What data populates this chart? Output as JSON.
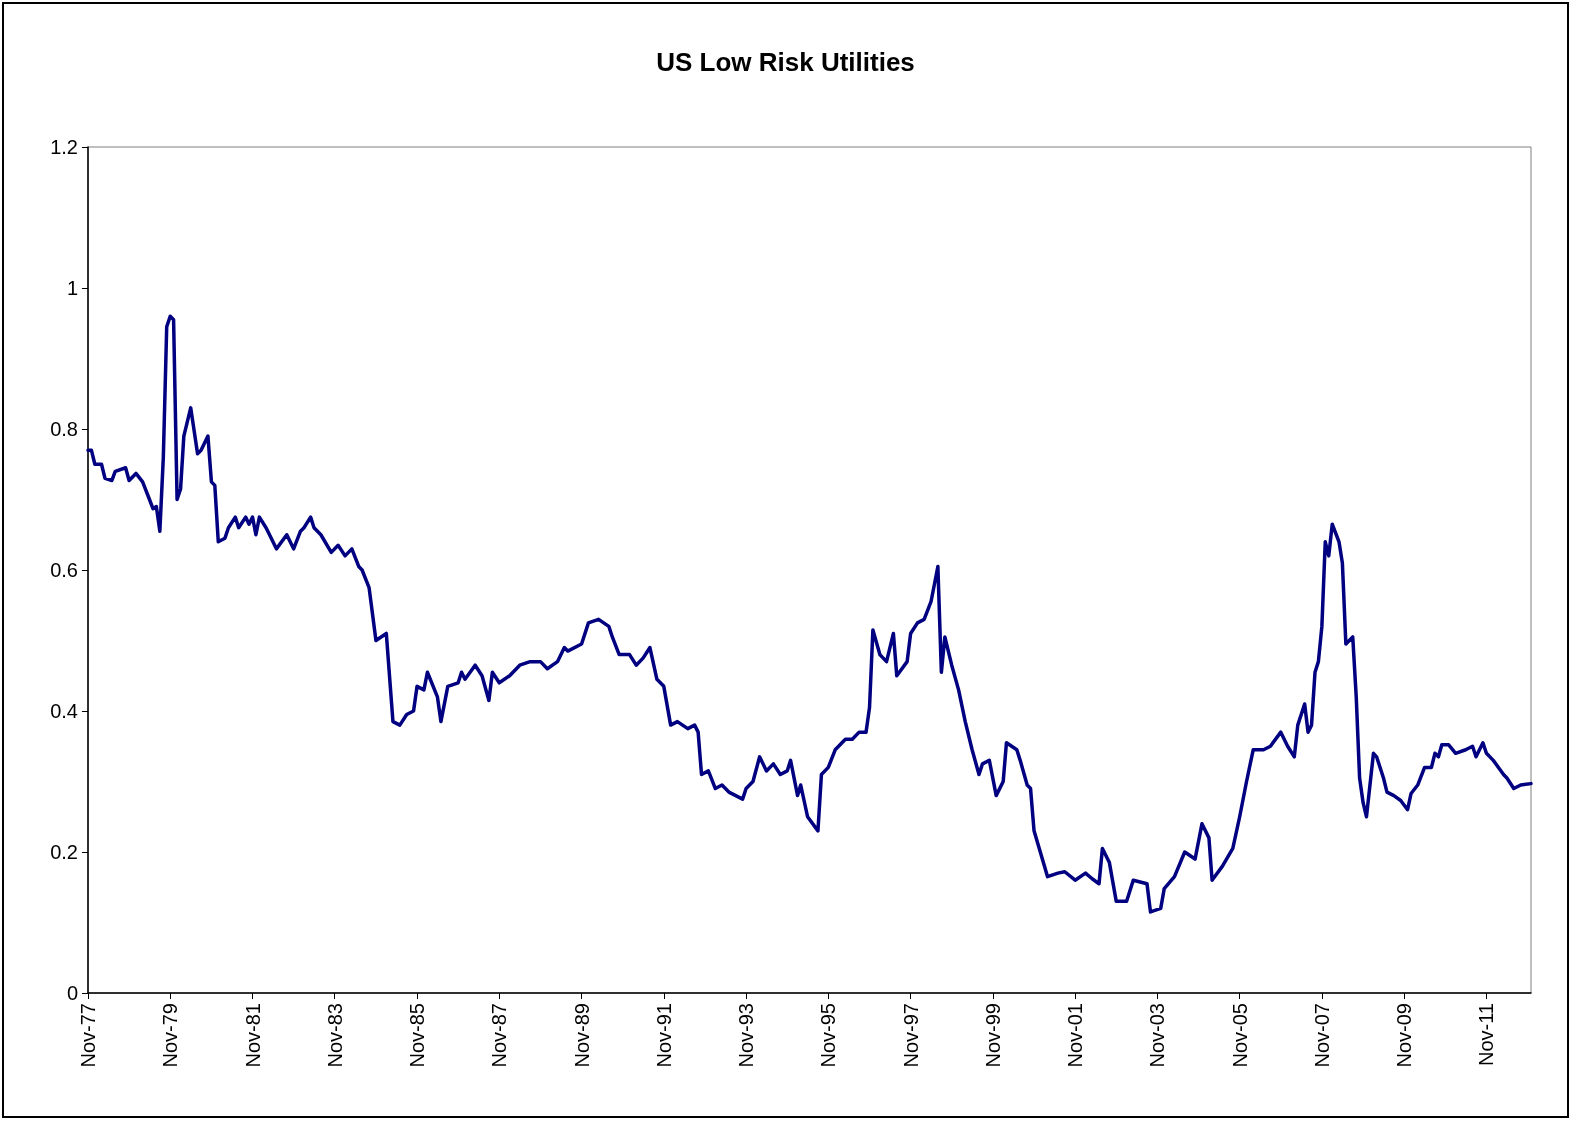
{
  "chart_data": {
    "type": "line",
    "title": "US Low Risk Utilities",
    "x": [
      "1977-11",
      "1977-12",
      "1978-01",
      "1978-03",
      "1978-04",
      "1978-06",
      "1978-07",
      "1978-10",
      "1978-11",
      "1979-01",
      "1979-03",
      "1979-05",
      "1979-06",
      "1979-07",
      "1979-08",
      "1979-09",
      "1979-10",
      "1979-11",
      "1979-12",
      "1980-01",
      "1980-02",
      "1980-03",
      "1980-05",
      "1980-07",
      "1980-08",
      "1980-10",
      "1980-11",
      "1980-12",
      "1981-01",
      "1981-03",
      "1981-04",
      "1981-06",
      "1981-07",
      "1981-09",
      "1981-10",
      "1981-11",
      "1981-12",
      "1982-01",
      "1982-03",
      "1982-04",
      "1982-06",
      "1982-09",
      "1982-11",
      "1983-01",
      "1983-02",
      "1983-04",
      "1983-05",
      "1983-07",
      "1983-10",
      "1983-12",
      "1984-02",
      "1984-04",
      "1984-06",
      "1984-07",
      "1984-09",
      "1984-11",
      "1985-02",
      "1985-04",
      "1985-06",
      "1985-08",
      "1985-10",
      "1985-11",
      "1986-01",
      "1986-02",
      "1986-05",
      "1986-06",
      "1986-08",
      "1986-11",
      "1986-12",
      "1987-01",
      "1987-04",
      "1987-06",
      "1987-08",
      "1987-09",
      "1987-11",
      "1988-02",
      "1988-05",
      "1988-08",
      "1988-11",
      "1989-01",
      "1989-04",
      "1989-06",
      "1989-07",
      "1989-11",
      "1990-01",
      "1990-04",
      "1990-07",
      "1990-08",
      "1990-10",
      "1991-01",
      "1991-03",
      "1991-05",
      "1991-07",
      "1991-09",
      "1991-11",
      "1992-01",
      "1992-03",
      "1992-06",
      "1992-08",
      "1992-09",
      "1992-10",
      "1992-12",
      "1993-02",
      "1993-04",
      "1993-06",
      "1993-10",
      "1993-11",
      "1994-01",
      "1994-03",
      "1994-05",
      "1994-07",
      "1994-09",
      "1994-11",
      "1994-12",
      "1995-02",
      "1995-03",
      "1995-05",
      "1995-08",
      "1995-09",
      "1995-11",
      "1996-01",
      "1996-04",
      "1996-06",
      "1996-08",
      "1996-10",
      "1996-11",
      "1996-12",
      "1997-02",
      "1997-04",
      "1997-06",
      "1997-07",
      "1997-10",
      "1997-11",
      "1998-01",
      "1998-03",
      "1998-05",
      "1998-07",
      "1998-08",
      "1998-09",
      "1998-11",
      "1999-01",
      "1999-03",
      "1999-05",
      "1999-07",
      "1999-08",
      "1999-10",
      "1999-12",
      "2000-02",
      "2000-03",
      "2000-06",
      "2000-07",
      "2000-09",
      "2000-10",
      "2000-11",
      "2001-03",
      "2001-06",
      "2001-08",
      "2001-11",
      "2002-02",
      "2002-04",
      "2002-06",
      "2002-07",
      "2002-09",
      "2002-11",
      "2003-02",
      "2003-04",
      "2003-08",
      "2003-09",
      "2003-12",
      "2004-01",
      "2004-04",
      "2004-07",
      "2004-10",
      "2004-12",
      "2005-02",
      "2005-03",
      "2005-06",
      "2005-09",
      "2005-11",
      "2006-01",
      "2006-03",
      "2006-06",
      "2006-08",
      "2006-11",
      "2007-01",
      "2007-03",
      "2007-04",
      "2007-06",
      "2007-07",
      "2007-08",
      "2007-09",
      "2007-10",
      "2007-11",
      "2007-12",
      "2008-01",
      "2008-02",
      "2008-04",
      "2008-05",
      "2008-06",
      "2008-08",
      "2008-09",
      "2008-10",
      "2008-11",
      "2008-12",
      "2009-02",
      "2009-03",
      "2009-05",
      "2009-06",
      "2009-08",
      "2009-10",
      "2009-12",
      "2010-01",
      "2010-03",
      "2010-05",
      "2010-07",
      "2010-08",
      "2010-09",
      "2010-10",
      "2010-12",
      "2011-02",
      "2011-05",
      "2011-07",
      "2011-08",
      "2011-10",
      "2011-11",
      "2012-01",
      "2012-04",
      "2012-05",
      "2012-07",
      "2012-09",
      "2012-12"
    ],
    "series": [
      {
        "color": "#000080",
        "values": [
          0.77,
          0.77,
          0.75,
          0.75,
          0.73,
          0.727,
          0.74,
          0.745,
          0.727,
          0.737,
          0.725,
          0.7,
          0.687,
          0.69,
          0.655,
          0.76,
          0.945,
          0.96,
          0.955,
          0.7,
          0.715,
          0.79,
          0.83,
          0.765,
          0.77,
          0.79,
          0.725,
          0.72,
          0.64,
          0.645,
          0.66,
          0.675,
          0.66,
          0.675,
          0.665,
          0.675,
          0.65,
          0.675,
          0.66,
          0.65,
          0.63,
          0.65,
          0.63,
          0.655,
          0.66,
          0.675,
          0.66,
          0.65,
          0.625,
          0.635,
          0.62,
          0.63,
          0.605,
          0.6,
          0.575,
          0.5,
          0.51,
          0.385,
          0.38,
          0.395,
          0.4,
          0.435,
          0.43,
          0.455,
          0.42,
          0.385,
          0.435,
          0.44,
          0.455,
          0.445,
          0.465,
          0.45,
          0.415,
          0.455,
          0.44,
          0.45,
          0.465,
          0.47,
          0.47,
          0.46,
          0.47,
          0.49,
          0.485,
          0.495,
          0.525,
          0.53,
          0.52,
          0.505,
          0.48,
          0.48,
          0.465,
          0.475,
          0.49,
          0.445,
          0.435,
          0.38,
          0.385,
          0.375,
          0.38,
          0.37,
          0.31,
          0.315,
          0.29,
          0.295,
          0.285,
          0.275,
          0.29,
          0.3,
          0.335,
          0.315,
          0.325,
          0.31,
          0.315,
          0.33,
          0.28,
          0.295,
          0.25,
          0.23,
          0.31,
          0.32,
          0.345,
          0.36,
          0.36,
          0.37,
          0.37,
          0.405,
          0.515,
          0.48,
          0.47,
          0.51,
          0.45,
          0.47,
          0.51,
          0.525,
          0.53,
          0.555,
          0.605,
          0.455,
          0.505,
          0.465,
          0.43,
          0.385,
          0.345,
          0.31,
          0.325,
          0.33,
          0.28,
          0.3,
          0.355,
          0.345,
          0.33,
          0.295,
          0.29,
          0.23,
          0.165,
          0.17,
          0.172,
          0.16,
          0.17,
          0.162,
          0.155,
          0.205,
          0.185,
          0.13,
          0.13,
          0.16,
          0.155,
          0.115,
          0.12,
          0.148,
          0.165,
          0.2,
          0.19,
          0.24,
          0.22,
          0.16,
          0.18,
          0.205,
          0.25,
          0.3,
          0.345,
          0.345,
          0.35,
          0.37,
          0.35,
          0.335,
          0.38,
          0.41,
          0.37,
          0.38,
          0.455,
          0.47,
          0.52,
          0.64,
          0.62,
          0.665,
          0.64,
          0.61,
          0.495,
          0.505,
          0.42,
          0.305,
          0.27,
          0.25,
          0.34,
          0.335,
          0.305,
          0.285,
          0.28,
          0.273,
          0.26,
          0.283,
          0.295,
          0.32,
          0.32,
          0.34,
          0.335,
          0.352,
          0.352,
          0.34,
          0.345,
          0.35,
          0.335,
          0.355,
          0.34,
          0.33,
          0.31,
          0.305,
          0.29,
          0.295,
          0.297
        ]
      }
    ],
    "xlim": [
      "1977-11",
      "2012-12"
    ],
    "xticks": [
      {
        "value": "1977-11",
        "label": "Nov-77"
      },
      {
        "value": "1979-11",
        "label": "Nov-79"
      },
      {
        "value": "1981-11",
        "label": "Nov-81"
      },
      {
        "value": "1983-11",
        "label": "Nov-83"
      },
      {
        "value": "1985-11",
        "label": "Nov-85"
      },
      {
        "value": "1987-11",
        "label": "Nov-87"
      },
      {
        "value": "1989-11",
        "label": "Nov-89"
      },
      {
        "value": "1991-11",
        "label": "Nov-91"
      },
      {
        "value": "1993-11",
        "label": "Nov-93"
      },
      {
        "value": "1995-11",
        "label": "Nov-95"
      },
      {
        "value": "1997-11",
        "label": "Nov-97"
      },
      {
        "value": "1999-11",
        "label": "Nov-99"
      },
      {
        "value": "2001-11",
        "label": "Nov-01"
      },
      {
        "value": "2003-11",
        "label": "Nov-03"
      },
      {
        "value": "2005-11",
        "label": "Nov-05"
      },
      {
        "value": "2007-11",
        "label": "Nov-07"
      },
      {
        "value": "2009-11",
        "label": "Nov-09"
      },
      {
        "value": "2011-11",
        "label": "Nov-11"
      }
    ],
    "ylim": [
      0,
      1.2
    ],
    "yticks": [
      0,
      0.2,
      0.4,
      0.6,
      0.8,
      1,
      1.2
    ],
    "grid": false,
    "marker": "none",
    "line_style": "solid"
  }
}
